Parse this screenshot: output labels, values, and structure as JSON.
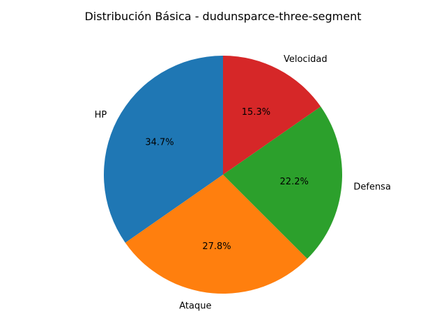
{
  "chart_data": {
    "type": "pie",
    "title": "Distribución Básica - dudunsparce-three-segment",
    "labels": [
      "HP",
      "Ataque",
      "Defensa",
      "Velocidad"
    ],
    "values": [
      34.7,
      27.8,
      22.2,
      15.3
    ],
    "percent_labels": [
      "34.7%",
      "27.8%",
      "22.2%",
      "15.3%"
    ],
    "colors": [
      "#1f77b4",
      "#ff7f0e",
      "#2ca02c",
      "#d62728"
    ],
    "start_angle": 90,
    "direction": "counterclockwise",
    "legend": "none"
  }
}
